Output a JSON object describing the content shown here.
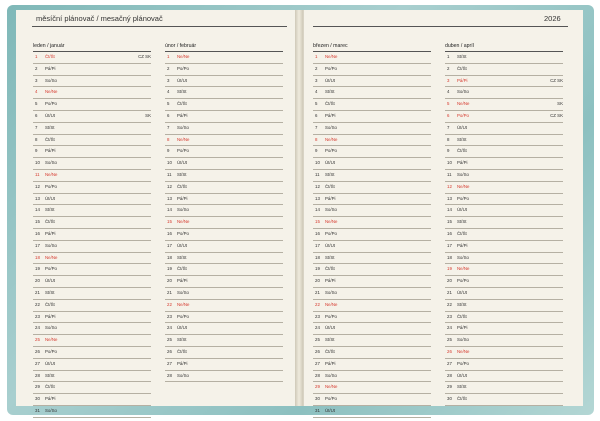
{
  "header": {
    "title": "měsíční plánovač / mesačný plánovač",
    "year": "2026"
  },
  "months": [
    {
      "label": "leden / január",
      "days": [
        {
          "d": "1",
          "w": "Čt/Št",
          "red": true,
          "note": "CZ SK"
        },
        {
          "d": "2",
          "w": "Pá/Pi"
        },
        {
          "d": "3",
          "w": "So/So"
        },
        {
          "d": "4",
          "w": "Ne/Ne",
          "red": true
        },
        {
          "d": "5",
          "w": "Po/Po"
        },
        {
          "d": "6",
          "w": "Út/Ut",
          "note": "SK"
        },
        {
          "d": "7",
          "w": "St/St"
        },
        {
          "d": "8",
          "w": "Čt/Št"
        },
        {
          "d": "9",
          "w": "Pá/Pi"
        },
        {
          "d": "10",
          "w": "So/So"
        },
        {
          "d": "11",
          "w": "Ne/Ne",
          "red": true
        },
        {
          "d": "12",
          "w": "Po/Po"
        },
        {
          "d": "13",
          "w": "Út/Ut"
        },
        {
          "d": "14",
          "w": "St/St"
        },
        {
          "d": "15",
          "w": "Čt/Št"
        },
        {
          "d": "16",
          "w": "Pá/Pi"
        },
        {
          "d": "17",
          "w": "So/So"
        },
        {
          "d": "18",
          "w": "Ne/Ne",
          "red": true
        },
        {
          "d": "19",
          "w": "Po/Po"
        },
        {
          "d": "20",
          "w": "Út/Ut"
        },
        {
          "d": "21",
          "w": "St/St"
        },
        {
          "d": "22",
          "w": "Čt/Št"
        },
        {
          "d": "23",
          "w": "Pá/Pi"
        },
        {
          "d": "24",
          "w": "So/So"
        },
        {
          "d": "25",
          "w": "Ne/Ne",
          "red": true
        },
        {
          "d": "26",
          "w": "Po/Po"
        },
        {
          "d": "27",
          "w": "Út/Ut"
        },
        {
          "d": "28",
          "w": "St/St"
        },
        {
          "d": "29",
          "w": "Čt/Št"
        },
        {
          "d": "30",
          "w": "Pá/Pi"
        },
        {
          "d": "31",
          "w": "So/So"
        }
      ]
    },
    {
      "label": "únor / február",
      "days": [
        {
          "d": "1",
          "w": "Ne/Ne",
          "red": true
        },
        {
          "d": "2",
          "w": "Po/Po"
        },
        {
          "d": "3",
          "w": "Út/Ut"
        },
        {
          "d": "4",
          "w": "St/St"
        },
        {
          "d": "5",
          "w": "Čt/Št"
        },
        {
          "d": "6",
          "w": "Pá/Pi"
        },
        {
          "d": "7",
          "w": "So/So"
        },
        {
          "d": "8",
          "w": "Ne/Ne",
          "red": true
        },
        {
          "d": "9",
          "w": "Po/Po"
        },
        {
          "d": "10",
          "w": "Út/Ut"
        },
        {
          "d": "11",
          "w": "St/St"
        },
        {
          "d": "12",
          "w": "Čt/Št"
        },
        {
          "d": "13",
          "w": "Pá/Pi"
        },
        {
          "d": "14",
          "w": "So/So"
        },
        {
          "d": "15",
          "w": "Ne/Ne",
          "red": true
        },
        {
          "d": "16",
          "w": "Po/Po"
        },
        {
          "d": "17",
          "w": "Út/Ut"
        },
        {
          "d": "18",
          "w": "St/St"
        },
        {
          "d": "19",
          "w": "Čt/Št"
        },
        {
          "d": "20",
          "w": "Pá/Pi"
        },
        {
          "d": "21",
          "w": "So/So"
        },
        {
          "d": "22",
          "w": "Ne/Ne",
          "red": true
        },
        {
          "d": "23",
          "w": "Po/Po"
        },
        {
          "d": "24",
          "w": "Út/Ut"
        },
        {
          "d": "25",
          "w": "St/St"
        },
        {
          "d": "26",
          "w": "Čt/Št"
        },
        {
          "d": "27",
          "w": "Pá/Pi"
        },
        {
          "d": "28",
          "w": "So/So"
        }
      ]
    },
    {
      "label": "březen / marec",
      "days": [
        {
          "d": "1",
          "w": "Ne/Ne",
          "red": true
        },
        {
          "d": "2",
          "w": "Po/Po"
        },
        {
          "d": "3",
          "w": "Út/Ut"
        },
        {
          "d": "4",
          "w": "St/St"
        },
        {
          "d": "5",
          "w": "Čt/Št"
        },
        {
          "d": "6",
          "w": "Pá/Pi"
        },
        {
          "d": "7",
          "w": "So/So"
        },
        {
          "d": "8",
          "w": "Ne/Ne",
          "red": true
        },
        {
          "d": "9",
          "w": "Po/Po"
        },
        {
          "d": "10",
          "w": "Út/Ut"
        },
        {
          "d": "11",
          "w": "St/St"
        },
        {
          "d": "12",
          "w": "Čt/Št"
        },
        {
          "d": "13",
          "w": "Pá/Pi"
        },
        {
          "d": "14",
          "w": "So/So"
        },
        {
          "d": "15",
          "w": "Ne/Ne",
          "red": true
        },
        {
          "d": "16",
          "w": "Po/Po"
        },
        {
          "d": "17",
          "w": "Út/Ut"
        },
        {
          "d": "18",
          "w": "St/St"
        },
        {
          "d": "19",
          "w": "Čt/Št"
        },
        {
          "d": "20",
          "w": "Pá/Pi"
        },
        {
          "d": "21",
          "w": "So/So"
        },
        {
          "d": "22",
          "w": "Ne/Ne",
          "red": true
        },
        {
          "d": "23",
          "w": "Po/Po"
        },
        {
          "d": "24",
          "w": "Út/Ut"
        },
        {
          "d": "25",
          "w": "St/St"
        },
        {
          "d": "26",
          "w": "Čt/Št"
        },
        {
          "d": "27",
          "w": "Pá/Pi"
        },
        {
          "d": "28",
          "w": "So/So"
        },
        {
          "d": "29",
          "w": "Ne/Ne",
          "red": true
        },
        {
          "d": "30",
          "w": "Po/Po"
        },
        {
          "d": "31",
          "w": "Út/Ut"
        }
      ]
    },
    {
      "label": "duben / apríl",
      "days": [
        {
          "d": "1",
          "w": "St/St"
        },
        {
          "d": "2",
          "w": "Čt/Št"
        },
        {
          "d": "3",
          "w": "Pá/Pi",
          "red": true,
          "note": "CZ SK"
        },
        {
          "d": "4",
          "w": "So/So"
        },
        {
          "d": "5",
          "w": "Ne/Ne",
          "red": true,
          "note": "SK"
        },
        {
          "d": "6",
          "w": "Po/Po",
          "red": true,
          "note": "CZ SK"
        },
        {
          "d": "7",
          "w": "Út/Ut"
        },
        {
          "d": "8",
          "w": "St/St"
        },
        {
          "d": "9",
          "w": "Čt/Št"
        },
        {
          "d": "10",
          "w": "Pá/Pi"
        },
        {
          "d": "11",
          "w": "So/So"
        },
        {
          "d": "12",
          "w": "Ne/Ne",
          "red": true
        },
        {
          "d": "13",
          "w": "Po/Po"
        },
        {
          "d": "14",
          "w": "Út/Ut"
        },
        {
          "d": "15",
          "w": "St/St"
        },
        {
          "d": "16",
          "w": "Čt/Št"
        },
        {
          "d": "17",
          "w": "Pá/Pi"
        },
        {
          "d": "18",
          "w": "So/So"
        },
        {
          "d": "19",
          "w": "Ne/Ne",
          "red": true
        },
        {
          "d": "20",
          "w": "Po/Po"
        },
        {
          "d": "21",
          "w": "Út/Ut"
        },
        {
          "d": "22",
          "w": "St/St"
        },
        {
          "d": "23",
          "w": "Čt/Št"
        },
        {
          "d": "24",
          "w": "Pá/Pi"
        },
        {
          "d": "25",
          "w": "So/So"
        },
        {
          "d": "26",
          "w": "Ne/Ne",
          "red": true
        },
        {
          "d": "27",
          "w": "Po/Po"
        },
        {
          "d": "28",
          "w": "Út/Ut"
        },
        {
          "d": "29",
          "w": "St/St"
        },
        {
          "d": "30",
          "w": "Čt/Št"
        }
      ]
    }
  ],
  "colors": {
    "holiday": "#d63a2f",
    "text": "#333333",
    "paper": "#f5f2e9",
    "cover": "#8cc0c0"
  }
}
